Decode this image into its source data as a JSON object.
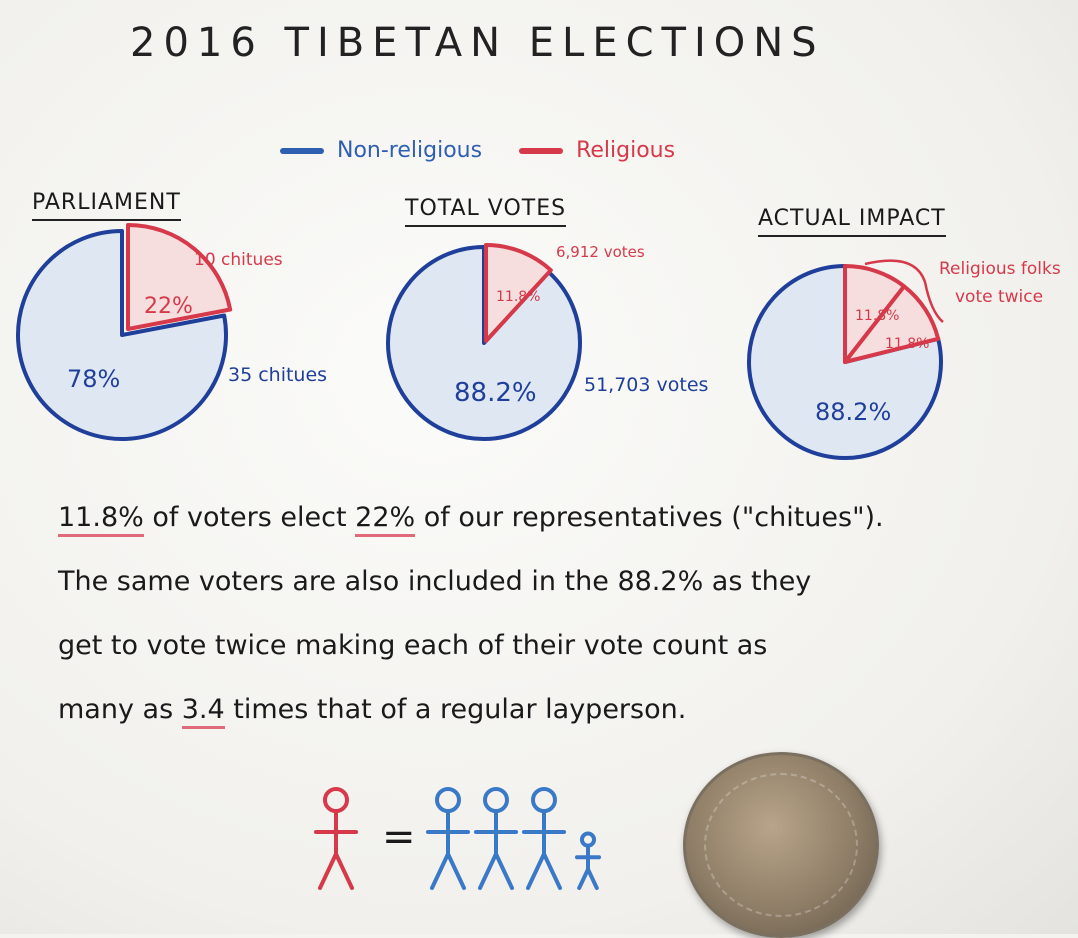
{
  "title": "2016 TIBETAN ELECTIONS",
  "legend": [
    {
      "label": "Non-religious",
      "color": "#2f5fb0"
    },
    {
      "label": "Religious",
      "color": "#d63a4a"
    }
  ],
  "colors": {
    "blue": "#1f3f9a",
    "red": "#d63a4a",
    "blue_fill": "#dfe7f3",
    "red_fill": "#f6dede",
    "ink": "#1a1a1a"
  },
  "chart_data": [
    {
      "type": "pie",
      "title": "PARLIAMENT",
      "slices": [
        {
          "label": "78%",
          "value": 78,
          "note": "35 chitues"
        },
        {
          "label": "22%",
          "value": 22,
          "note": "10 chitues"
        }
      ]
    },
    {
      "type": "pie",
      "title": "TOTAL VOTES",
      "slices": [
        {
          "label": "88.2%",
          "value": 88.2,
          "note": "51,703 votes"
        },
        {
          "label": "11.8%",
          "value": 11.8,
          "note": "6,912 votes"
        }
      ]
    },
    {
      "type": "pie",
      "title": "ACTUAL IMPACT",
      "slices": [
        {
          "label": "88.2%",
          "value": 88.2
        },
        {
          "label": "11.8%",
          "value": 11.8
        },
        {
          "label": "11.8%",
          "value": 11.8
        }
      ],
      "annotation": "Religious folks vote twice"
    }
  ],
  "paragraph": {
    "line1": {
      "hl1": "11.8%",
      "t1": " of voters elect ",
      "hl2": "22%",
      "t2": " of our representatives (\"chitues\")."
    },
    "line2": "The same voters are also included in the 88.2% as they",
    "line3": "get to vote twice making each of their vote count as",
    "line4": {
      "t1": "many as ",
      "hl": "3.4",
      "t2": " times that of a regular layperson."
    }
  },
  "figures": {
    "equals": "=",
    "red_count": 1,
    "blue_count": 3.4
  }
}
